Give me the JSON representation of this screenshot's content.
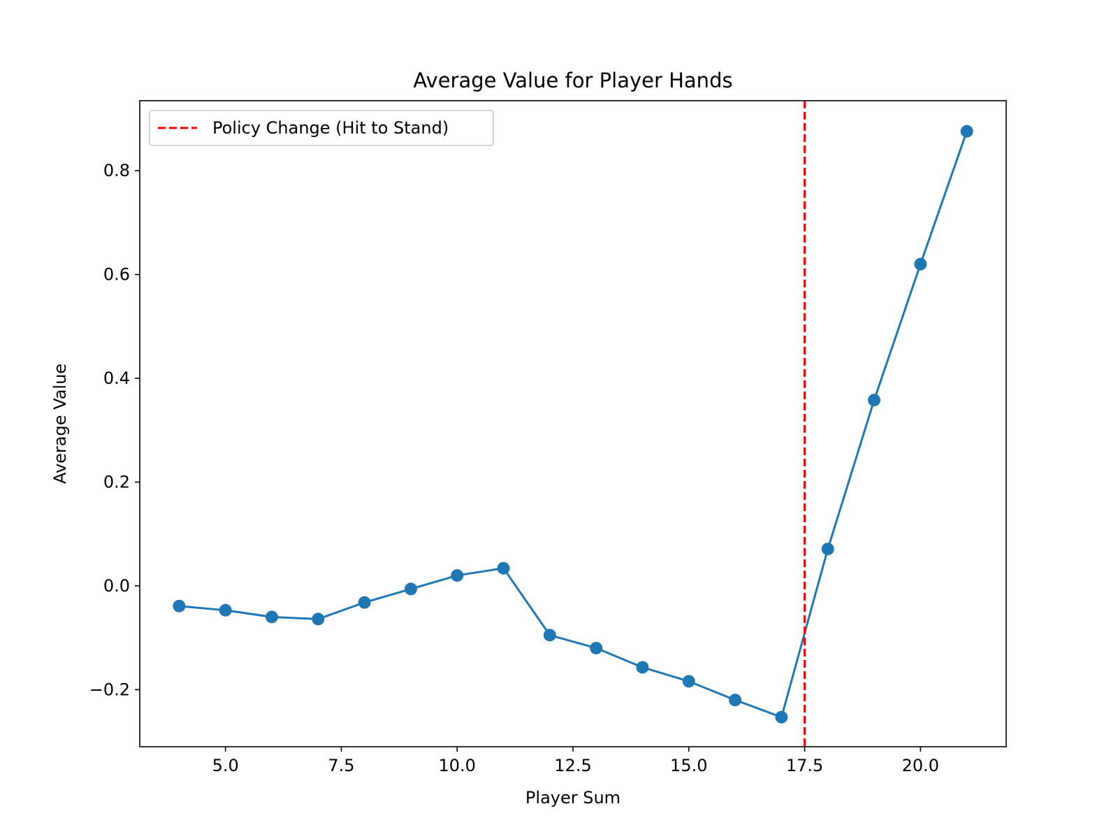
{
  "chart_data": {
    "type": "line",
    "title": "Average Value for Player Hands",
    "xlabel": "Player Sum",
    "ylabel": "Average Value",
    "xlim": [
      3.15,
      21.85
    ],
    "ylim": [
      -0.31,
      0.935
    ],
    "xticks": [
      5.0,
      7.5,
      10.0,
      12.5,
      15.0,
      17.5,
      20.0
    ],
    "xtick_labels": [
      "5.0",
      "7.5",
      "10.0",
      "12.5",
      "15.0",
      "17.5",
      "20.0"
    ],
    "yticks": [
      -0.2,
      0.0,
      0.2,
      0.4,
      0.6,
      0.8
    ],
    "ytick_labels": [
      "−0.2",
      "0.0",
      "0.2",
      "0.4",
      "0.6",
      "0.8"
    ],
    "grid": false,
    "legend_position": "top-left",
    "series": [
      {
        "x": [
          4,
          5,
          6,
          7,
          8,
          9,
          10,
          11,
          12,
          13,
          14,
          15,
          16,
          17,
          18,
          19,
          20,
          21
        ],
        "y": [
          -0.039,
          -0.047,
          -0.06,
          -0.064,
          -0.032,
          -0.006,
          0.02,
          0.034,
          -0.095,
          -0.12,
          -0.157,
          -0.184,
          -0.22,
          -0.253,
          0.071,
          0.358,
          0.62,
          0.876
        ],
        "color": "#1f77b4",
        "marker": "circle"
      }
    ],
    "reference_lines": [
      {
        "orientation": "vertical",
        "x": 17.5,
        "label": "Policy Change (Hit to Stand)",
        "color": "#ff0000",
        "style": "dashed"
      }
    ]
  }
}
